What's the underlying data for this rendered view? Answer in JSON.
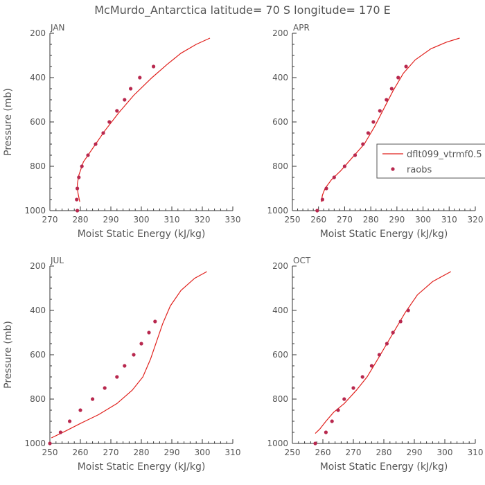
{
  "figure": {
    "title": "McMurdo_Antarctica  latitude= 70 S longitude= 170 E"
  },
  "legend": {
    "line_label": "dflt099_vtrmf0.5",
    "dots_label": "raobs",
    "line_color": "#e0201c",
    "dot_color": "#b8284e"
  },
  "chart_data": [
    {
      "type": "line",
      "panel": "JAN",
      "xlabel": "Moist Static Energy (kJ/kg)",
      "ylabel": "Pressure (mb)",
      "xlim": [
        270,
        330
      ],
      "ylim": [
        1000,
        200
      ],
      "xticks": [
        270,
        280,
        290,
        300,
        310,
        320,
        330
      ],
      "yticks": [
        200,
        400,
        600,
        800,
        1000
      ],
      "series": [
        {
          "name": "dflt099_vtrmf0.5",
          "style": "line",
          "x": [
            279.8,
            279.2,
            279.0,
            279.5,
            281.0,
            284.0,
            288.0,
            292.5,
            297.5,
            303.5,
            308.5,
            313.0,
            318.0,
            322.5
          ],
          "y": [
            960,
            920,
            880,
            840,
            780,
            720,
            640,
            560,
            480,
            400,
            340,
            290,
            250,
            222
          ]
        },
        {
          "name": "raobs",
          "style": "dots",
          "x": [
            279.0,
            278.8,
            279.0,
            279.5,
            280.5,
            282.5,
            285.0,
            287.5,
            289.5,
            292.0,
            294.5,
            296.5,
            299.5,
            304.0
          ],
          "y": [
            1000,
            950,
            900,
            850,
            800,
            750,
            700,
            650,
            600,
            550,
            500,
            450,
            400,
            350
          ]
        }
      ]
    },
    {
      "type": "line",
      "panel": "APR",
      "xlabel": "Moist Static Energy (kJ/kg)",
      "ylabel": "",
      "xlim": [
        250,
        320
      ],
      "ylim": [
        1000,
        200
      ],
      "xticks": [
        250,
        260,
        270,
        280,
        290,
        300,
        310,
        320
      ],
      "yticks": [
        200,
        400,
        600,
        800,
        1000
      ],
      "series": [
        {
          "name": "dflt099_vtrmf0.5",
          "style": "line",
          "x": [
            261.0,
            261.5,
            262.5,
            265.0,
            268.5,
            273.0,
            277.5,
            281.5,
            285.0,
            288.5,
            292.5,
            297.0,
            303.0,
            309.0,
            314.0
          ],
          "y": [
            960,
            930,
            900,
            860,
            820,
            760,
            700,
            620,
            540,
            460,
            380,
            320,
            270,
            240,
            222
          ]
        },
        {
          "name": "raobs",
          "style": "dots",
          "x": [
            259.5,
            261.5,
            263.0,
            266.0,
            270.0,
            274.0,
            277.0,
            279.0,
            281.0,
            283.5,
            286.0,
            288.0,
            290.5,
            293.5
          ],
          "y": [
            1000,
            950,
            900,
            850,
            800,
            750,
            700,
            650,
            600,
            550,
            500,
            450,
            400,
            350
          ]
        }
      ]
    },
    {
      "type": "line",
      "panel": "JUL",
      "xlabel": "Moist Static Energy (kJ/kg)",
      "ylabel": "Pressure (mb)",
      "xlim": [
        250,
        310
      ],
      "ylim": [
        1000,
        200
      ],
      "xticks": [
        250,
        260,
        270,
        280,
        290,
        300,
        310
      ],
      "yticks": [
        200,
        400,
        600,
        800,
        1000
      ],
      "series": [
        {
          "name": "dflt099_vtrmf0.5",
          "style": "line",
          "x": [
            250.5,
            255.0,
            260.0,
            266.0,
            272.0,
            277.0,
            280.5,
            283.0,
            285.0,
            287.0,
            289.5,
            293.0,
            297.5,
            301.5
          ],
          "y": [
            975,
            945,
            910,
            870,
            820,
            760,
            700,
            620,
            540,
            460,
            380,
            310,
            255,
            225
          ]
        },
        {
          "name": "raobs",
          "style": "dots",
          "x": [
            250.0,
            253.5,
            256.5,
            260.0,
            264.0,
            268.0,
            272.0,
            274.5,
            277.5,
            280.0,
            282.5,
            284.5
          ],
          "y": [
            1000,
            950,
            900,
            850,
            800,
            750,
            700,
            650,
            600,
            550,
            500,
            450
          ]
        }
      ]
    },
    {
      "type": "line",
      "panel": "OCT",
      "xlabel": "Moist Static Energy (kJ/kg)",
      "ylabel": "",
      "xlim": [
        250,
        310
      ],
      "ylim": [
        1000,
        200
      ],
      "xticks": [
        250,
        260,
        270,
        280,
        290,
        300,
        310
      ],
      "yticks": [
        200,
        400,
        600,
        800,
        1000
      ],
      "series": [
        {
          "name": "dflt099_vtrmf0.5",
          "style": "line",
          "x": [
            257.5,
            259.0,
            261.0,
            263.5,
            267.0,
            271.0,
            274.5,
            278.0,
            281.0,
            284.0,
            287.0,
            291.0,
            296.0,
            302.0
          ],
          "y": [
            955,
            935,
            900,
            860,
            820,
            760,
            700,
            620,
            550,
            480,
            410,
            330,
            270,
            225
          ]
        },
        {
          "name": "raobs",
          "style": "dots",
          "x": [
            257.5,
            261.0,
            263.0,
            265.0,
            267.0,
            270.0,
            273.0,
            276.0,
            278.5,
            281.0,
            283.0,
            285.5,
            288.0
          ],
          "y": [
            1000,
            950,
            900,
            850,
            800,
            750,
            700,
            650,
            600,
            550,
            500,
            450,
            400
          ]
        }
      ]
    }
  ]
}
